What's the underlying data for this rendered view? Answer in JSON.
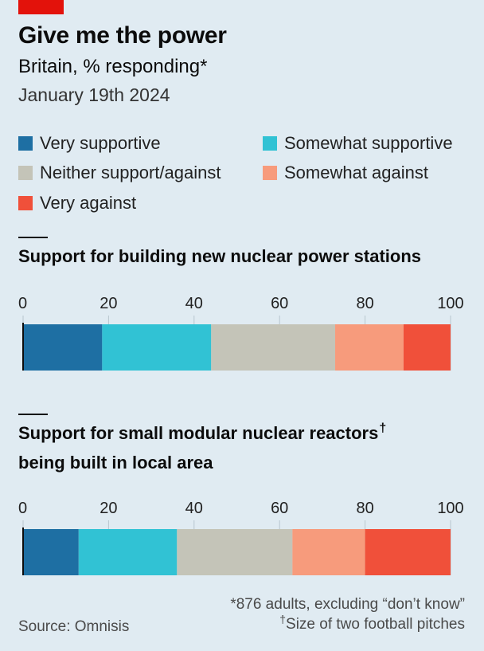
{
  "title": "Give me the power",
  "subtitle": "Britain, % responding*",
  "date": "January 19th 2024",
  "legend": [
    {
      "label": "Very supportive",
      "color": "#1e6fa3"
    },
    {
      "label": "Somewhat supportive",
      "color": "#31c2d4"
    },
    {
      "label": "Neither support/against",
      "color": "#c4c4b8"
    },
    {
      "label": "Somewhat against",
      "color": "#f79b7c"
    },
    {
      "label": "Very against",
      "color": "#f0503a"
    }
  ],
  "sections": [
    {
      "title": "Support for building new nuclear power stations",
      "title_line2": "",
      "dagger": ""
    },
    {
      "title": "Support for small modular nuclear reactors",
      "title_line2": "being built in local area",
      "dagger": "†"
    }
  ],
  "chart_data": [
    {
      "type": "bar",
      "orientation": "horizontal-stacked",
      "title": "Support for building new nuclear power stations",
      "xlim": [
        0,
        100
      ],
      "ticks": [
        "0",
        "20",
        "40",
        "60",
        "80",
        "100"
      ],
      "grid": true,
      "series": [
        {
          "name": "Very supportive",
          "values": [
            18.5
          ]
        },
        {
          "name": "Somewhat supportive",
          "values": [
            25.5
          ]
        },
        {
          "name": "Neither support/against",
          "values": [
            29
          ]
        },
        {
          "name": "Somewhat against",
          "values": [
            16
          ]
        },
        {
          "name": "Very against",
          "values": [
            11
          ]
        }
      ]
    },
    {
      "type": "bar",
      "orientation": "horizontal-stacked",
      "title": "Support for small modular nuclear reactors being built in local area",
      "xlim": [
        0,
        100
      ],
      "ticks": [
        "0",
        "20",
        "40",
        "60",
        "80",
        "100"
      ],
      "grid": true,
      "series": [
        {
          "name": "Very supportive",
          "values": [
            13
          ]
        },
        {
          "name": "Somewhat supportive",
          "values": [
            23
          ]
        },
        {
          "name": "Neither support/against",
          "values": [
            27
          ]
        },
        {
          "name": "Somewhat against",
          "values": [
            17
          ]
        },
        {
          "name": "Very against",
          "values": [
            20
          ]
        }
      ]
    }
  ],
  "footnote_1": "*876 adults, excluding “don’t know”",
  "footnote_2_mark": "†",
  "footnote_2": "Size of two football pitches",
  "source": "Source: Omnisis"
}
